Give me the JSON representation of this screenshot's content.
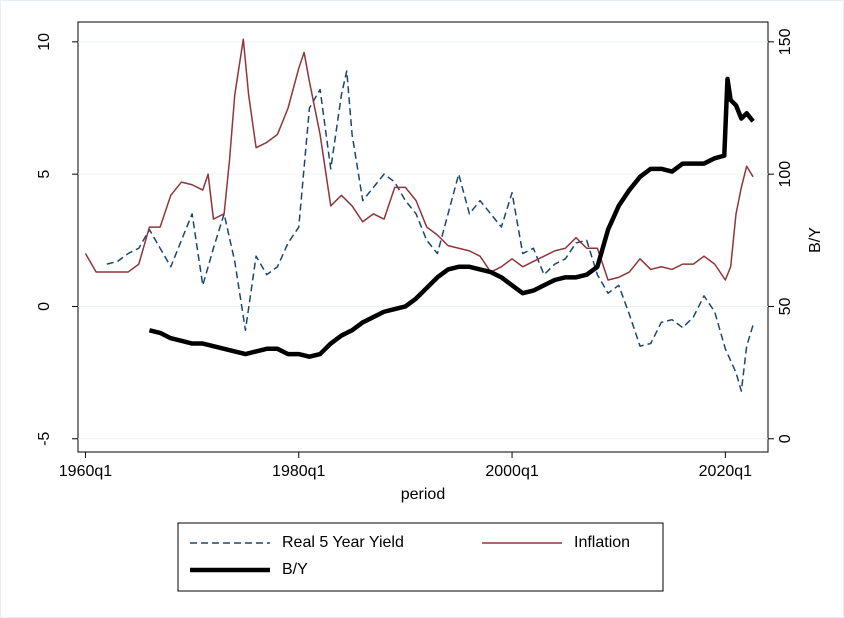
{
  "chart_data": {
    "type": "line",
    "x_label": "period",
    "y2_label": "B/Y",
    "xlim": [
      1959.3,
      2024
    ],
    "xticks": [
      {
        "value": 1960,
        "label": "1960q1"
      },
      {
        "value": 1980,
        "label": "1980q1"
      },
      {
        "value": 2000,
        "label": "2000q1"
      },
      {
        "value": 2020,
        "label": "2020q1"
      }
    ],
    "ylim": [
      -5.5,
      10.75
    ],
    "yticks": [
      -5,
      0,
      5,
      10
    ],
    "y2lim": [
      -5,
      157.5
    ],
    "y2ticks": [
      0,
      50,
      100,
      150
    ],
    "grid": true,
    "legend": "bottom",
    "series": [
      {
        "name": "Real 5 Year Yield",
        "color": "#1a476f",
        "style": "dashed",
        "x": [
          1962,
          1963,
          1964,
          1965,
          1966,
          1967,
          1968,
          1969,
          1970,
          1971,
          1972,
          1973,
          1974,
          1975,
          1976,
          1977,
          1978,
          1979,
          1980,
          1981,
          1982,
          1983,
          1984,
          1984.5,
          1985,
          1986,
          1987,
          1988,
          1989,
          1990,
          1991,
          1992,
          1993,
          1994,
          1995,
          1996,
          1997,
          1998,
          1999,
          2000,
          2001,
          2002,
          2003,
          2004,
          2005,
          2006,
          2007,
          2008,
          2009,
          2010,
          2011,
          2012,
          2013,
          2014,
          2015,
          2016,
          2017,
          2018,
          2019,
          2020,
          2021,
          2021.5,
          2022,
          2022.6
        ],
        "values": [
          1.6,
          1.7,
          2.0,
          2.2,
          2.9,
          2.2,
          1.5,
          2.5,
          3.5,
          0.8,
          2.2,
          3.5,
          1.7,
          -0.9,
          1.9,
          1.2,
          1.5,
          2.4,
          3.0,
          7.5,
          8.2,
          5.2,
          8.0,
          8.9,
          6.5,
          4.0,
          4.5,
          5.0,
          4.7,
          4.0,
          3.5,
          2.5,
          2.0,
          3.5,
          5.0,
          3.5,
          4.0,
          3.5,
          3.0,
          4.3,
          2.0,
          2.2,
          1.2,
          1.6,
          1.8,
          2.4,
          2.5,
          1.2,
          0.5,
          0.8,
          -0.3,
          -1.5,
          -1.4,
          -0.6,
          -0.5,
          -0.8,
          -0.4,
          0.4,
          -0.2,
          -1.6,
          -2.5,
          -3.2,
          -1.5,
          -0.7
        ]
      },
      {
        "name": "Inflation",
        "color": "#90353b",
        "style": "solid",
        "x": [
          1960,
          1961,
          1962,
          1963,
          1964,
          1965,
          1966,
          1967,
          1968,
          1969,
          1970,
          1971,
          1971.5,
          1972,
          1973,
          1973.5,
          1974,
          1974.8,
          1975.3,
          1976,
          1977,
          1978,
          1979,
          1980,
          1980.5,
          1981,
          1982,
          1983,
          1984,
          1985,
          1986,
          1987,
          1988,
          1989,
          1990,
          1991,
          1992,
          1993,
          1994,
          1995,
          1996,
          1997,
          1998,
          1999,
          2000,
          2001,
          2002,
          2003,
          2004,
          2005,
          2006,
          2007,
          2008,
          2009,
          2010,
          2011,
          2012,
          2013,
          2014,
          2015,
          2016,
          2017,
          2018,
          2019,
          2020,
          2020.5,
          2021,
          2021.5,
          2022,
          2022.6
        ],
        "values": [
          2.0,
          1.3,
          1.3,
          1.3,
          1.3,
          1.6,
          3.0,
          3.0,
          4.2,
          4.7,
          4.6,
          4.4,
          5.0,
          3.3,
          3.5,
          5.5,
          8.0,
          10.1,
          8.0,
          6.0,
          6.2,
          6.5,
          7.5,
          9.0,
          9.6,
          8.5,
          6.5,
          3.8,
          4.2,
          3.8,
          3.2,
          3.5,
          3.3,
          4.5,
          4.5,
          4.0,
          3.0,
          2.7,
          2.3,
          2.2,
          2.1,
          1.9,
          1.3,
          1.5,
          1.8,
          1.5,
          1.7,
          1.9,
          2.1,
          2.2,
          2.6,
          2.2,
          2.2,
          1.0,
          1.1,
          1.3,
          1.8,
          1.4,
          1.5,
          1.4,
          1.6,
          1.6,
          1.9,
          1.6,
          1.0,
          1.5,
          3.5,
          4.5,
          5.3,
          4.9
        ]
      },
      {
        "name": "B/Y",
        "color": "#000000",
        "style": "thick",
        "axis": "y2",
        "x": [
          1966,
          1967,
          1968,
          1969,
          1970,
          1971,
          1972,
          1973,
          1974,
          1975,
          1976,
          1977,
          1978,
          1979,
          1980,
          1981,
          1982,
          1983,
          1984,
          1985,
          1986,
          1987,
          1988,
          1989,
          1990,
          1991,
          1992,
          1993,
          1994,
          1995,
          1996,
          1997,
          1998,
          1999,
          2000,
          2001,
          2002,
          2003,
          2004,
          2005,
          2006,
          2007,
          2008,
          2009,
          2010,
          2011,
          2012,
          2013,
          2014,
          2015,
          2016,
          2017,
          2018,
          2019,
          2019.9,
          2020.2,
          2020.5,
          2021,
          2021.5,
          2022,
          2022.6
        ],
        "values": [
          41,
          40,
          38,
          37,
          36,
          36,
          35,
          34,
          33,
          32,
          33,
          34,
          34,
          32,
          32,
          31,
          32,
          36,
          39,
          41,
          44,
          46,
          48,
          49,
          50,
          53,
          57,
          61,
          64,
          65,
          65,
          64,
          63,
          61,
          58,
          55,
          56,
          58,
          60,
          61,
          61,
          62,
          65,
          79,
          88,
          94,
          99,
          102,
          102,
          101,
          104,
          104,
          104,
          106,
          107,
          136,
          128,
          126,
          121,
          123,
          120
        ]
      }
    ]
  }
}
